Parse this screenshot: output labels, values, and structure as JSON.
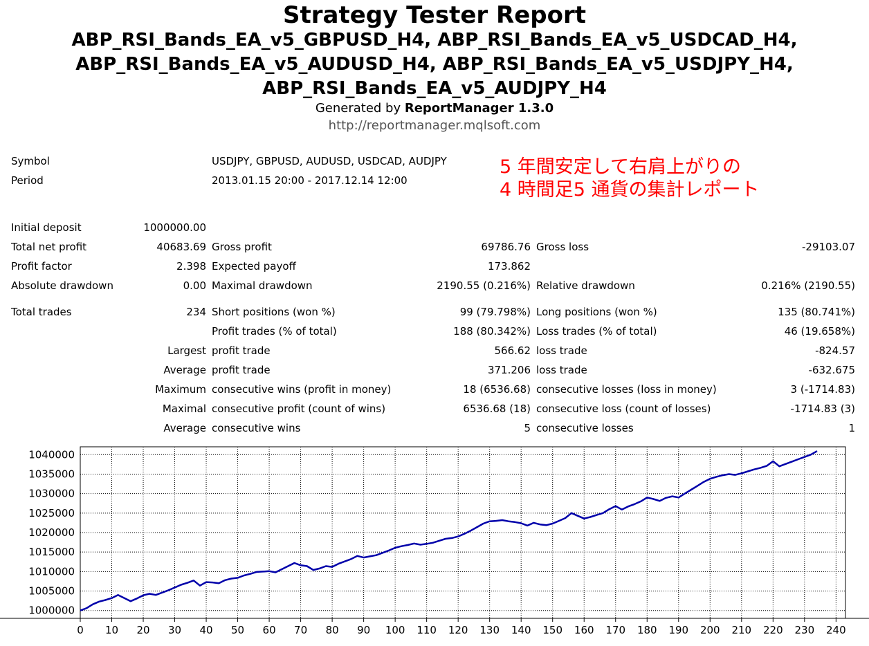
{
  "header": {
    "title": "Strategy Tester Report",
    "subtitle_lines": [
      "ABP_RSI_Bands_EA_v5_GBPUSD_H4, ABP_RSI_Bands_EA_v5_USDCAD_H4,",
      "ABP_RSI_Bands_EA_v5_AUDUSD_H4, ABP_RSI_Bands_EA_v5_USDJPY_H4,",
      "ABP_RSI_Bands_EA_v5_AUDJPY_H4"
    ],
    "generated_prefix": "Generated by ",
    "generated_by": "ReportManager 1.3.0",
    "url": "http://reportmanager.mqlsoft.com"
  },
  "info": {
    "symbol_label": "Symbol",
    "symbol_value": "USDJPY, GBPUSD, AUDUSD, USDCAD, AUDJPY",
    "period_label": "Period",
    "period_value": "2013.01.15 20:00 - 2017.12.14 12:00"
  },
  "annotation": {
    "line1": "5 年間安定して右肩上がりの",
    "line2": "4 時間足5 通貨の集計レポート",
    "color": "#ff0000"
  },
  "stats": {
    "initial_deposit": {
      "label": "Initial deposit",
      "value": "1000000.00"
    },
    "total_net_profit": {
      "label": "Total net profit",
      "value": "40683.69"
    },
    "gross_profit": {
      "label": "Gross profit",
      "value": "69786.76"
    },
    "gross_loss": {
      "label": "Gross loss",
      "value": "-29103.07"
    },
    "profit_factor": {
      "label": "Profit factor",
      "value": "2.398"
    },
    "expected_payoff": {
      "label": "Expected payoff",
      "value": "173.862"
    },
    "absolute_drawdown": {
      "label": "Absolute drawdown",
      "value": "0.00"
    },
    "maximal_drawdown": {
      "label": "Maximal drawdown",
      "value": "2190.55 (0.216%)"
    },
    "relative_drawdown": {
      "label": "Relative drawdown",
      "value": "0.216% (2190.55)"
    },
    "total_trades": {
      "label": "Total trades",
      "value": "234"
    },
    "short_positions": {
      "label": "Short positions (won %)",
      "value": "99 (79.798%)"
    },
    "long_positions": {
      "label": "Long positions (won %)",
      "value": "135 (80.741%)"
    },
    "profit_trades": {
      "label": "Profit trades (% of total)",
      "value": "188 (80.342%)"
    },
    "loss_trades": {
      "label": "Loss trades (% of total)",
      "value": "46 (19.658%)"
    },
    "largest": {
      "label": "Largest",
      "profit_label": "profit trade",
      "profit_value": "566.62",
      "loss_label": "loss trade",
      "loss_value": "-824.57"
    },
    "average": {
      "label": "Average",
      "profit_label": "profit trade",
      "profit_value": "371.206",
      "loss_label": "loss trade",
      "loss_value": "-632.675"
    },
    "maximum": {
      "label": "Maximum",
      "profit_label": "consecutive wins (profit in money)",
      "profit_value": "18 (6536.68)",
      "loss_label": "consecutive losses (loss in money)",
      "loss_value": "3 (-1714.83)"
    },
    "maximal": {
      "label": "Maximal",
      "profit_label": "consecutive profit (count of wins)",
      "profit_value": "6536.68 (18)",
      "loss_label": "consecutive loss (count of losses)",
      "loss_value": "-1714.83 (3)"
    },
    "average_consec": {
      "label": "Average",
      "profit_label": "consecutive wins",
      "profit_value": "5",
      "loss_label": "consecutive losses",
      "loss_value": "1"
    }
  },
  "chart_data": {
    "type": "line",
    "xlim": [
      0,
      243
    ],
    "ylim": [
      998000,
      1042000
    ],
    "x_ticks": [
      0,
      10,
      20,
      30,
      40,
      50,
      60,
      70,
      80,
      90,
      100,
      110,
      120,
      130,
      140,
      150,
      160,
      170,
      180,
      190,
      200,
      210,
      220,
      230,
      240
    ],
    "y_ticks": [
      1000000,
      1005000,
      1010000,
      1015000,
      1020000,
      1025000,
      1030000,
      1035000,
      1040000
    ],
    "grid": true,
    "line_color": "#0000aa",
    "series": [
      {
        "x": [
          0,
          2,
          4,
          6,
          8,
          10,
          12,
          14,
          16,
          18,
          20,
          22,
          24,
          26,
          28,
          30,
          32,
          34,
          36,
          38,
          40,
          42,
          44,
          46,
          48,
          50,
          52,
          54,
          56,
          58,
          60,
          62,
          64,
          66,
          68,
          70,
          72,
          74,
          76,
          78,
          80,
          82,
          84,
          86,
          88,
          90,
          92,
          94,
          96,
          98,
          100,
          102,
          104,
          106,
          108,
          110,
          112,
          114,
          116,
          118,
          120,
          122,
          124,
          126,
          128,
          130,
          132,
          134,
          136,
          138,
          140,
          142,
          144,
          146,
          148,
          150,
          152,
          154,
          156,
          158,
          160,
          162,
          164,
          166,
          168,
          170,
          172,
          174,
          176,
          178,
          180,
          182,
          184,
          186,
          188,
          190,
          192,
          194,
          196,
          198,
          200,
          202,
          204,
          206,
          208,
          210,
          212,
          214,
          216,
          218,
          220,
          222,
          224,
          226,
          228,
          230,
          232,
          234
        ],
        "y": [
          1000000,
          1000600,
          1001600,
          1002300,
          1002700,
          1003200,
          1004000,
          1003200,
          1002400,
          1003100,
          1003900,
          1004300,
          1004000,
          1004600,
          1005200,
          1005900,
          1006600,
          1007100,
          1007700,
          1006400,
          1007300,
          1007200,
          1007000,
          1007800,
          1008200,
          1008400,
          1009000,
          1009400,
          1009900,
          1010000,
          1010100,
          1009800,
          1010600,
          1011400,
          1012200,
          1011600,
          1011400,
          1010400,
          1010800,
          1011400,
          1011200,
          1012000,
          1012600,
          1013200,
          1014000,
          1013600,
          1013900,
          1014200,
          1014800,
          1015400,
          1016100,
          1016500,
          1016800,
          1017200,
          1016900,
          1017100,
          1017400,
          1017900,
          1018400,
          1018600,
          1019000,
          1019700,
          1020500,
          1021400,
          1022300,
          1022900,
          1023000,
          1023200,
          1022900,
          1022700,
          1022400,
          1021800,
          1022500,
          1022100,
          1021900,
          1022300,
          1023000,
          1023700,
          1025000,
          1024300,
          1023600,
          1024000,
          1024500,
          1025000,
          1026000,
          1026800,
          1025900,
          1026700,
          1027300,
          1028000,
          1029000,
          1028600,
          1028100,
          1028900,
          1029300,
          1029000,
          1030000,
          1031000,
          1032000,
          1033000,
          1033800,
          1034300,
          1034700,
          1035000,
          1034800,
          1035200,
          1035700,
          1036200,
          1036600,
          1037100,
          1038300,
          1037000,
          1037600,
          1038200,
          1038800,
          1039400,
          1040000,
          1040900
        ]
      }
    ]
  }
}
